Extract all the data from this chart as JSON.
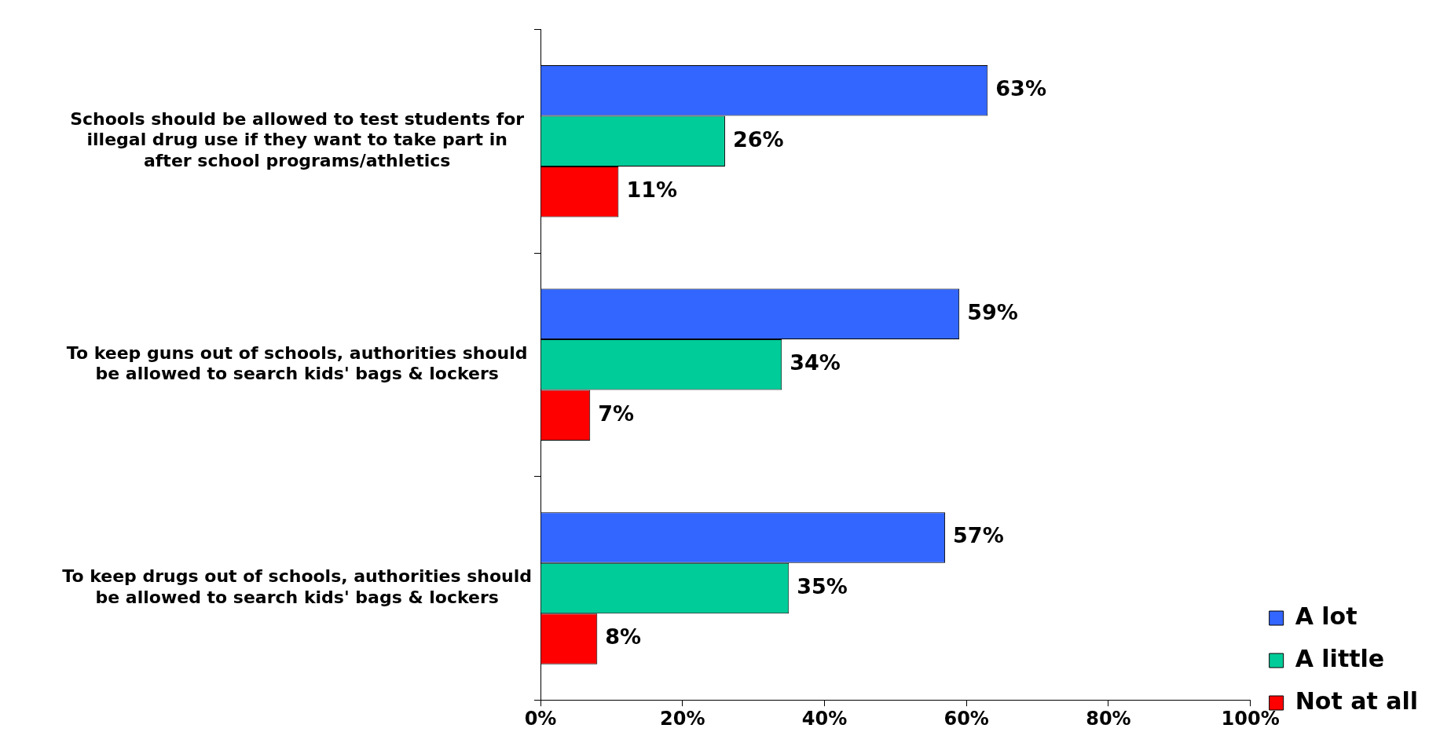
{
  "chart_data": {
    "type": "bar",
    "orientation": "horizontal",
    "categories": [
      "Schools should be allowed to test students for illegal drug use if they want to take part in after school programs/athletics",
      "To keep guns out of schools, authorities should be allowed to search kids' bags & lockers",
      "To keep drugs out of schools, authorities should be allowed to search kids' bags & lockers"
    ],
    "series": [
      {
        "name": "A lot",
        "color": "#3366ff",
        "values": [
          63,
          59,
          57
        ],
        "value_labels": [
          "63%",
          "59%",
          "57%"
        ]
      },
      {
        "name": "A little",
        "color": "#00cc99",
        "values": [
          26,
          34,
          35
        ],
        "value_labels": [
          "26%",
          "34%",
          "35%"
        ]
      },
      {
        "name": "Not at all",
        "color": "#ff0000",
        "values": [
          11,
          7,
          8
        ],
        "value_labels": [
          "11%",
          "7%",
          "8%"
        ]
      }
    ],
    "xlim": [
      0,
      100
    ],
    "xticks": [
      {
        "value": 0,
        "label": "0%"
      },
      {
        "value": 20,
        "label": "20%"
      },
      {
        "value": 40,
        "label": "40%"
      },
      {
        "value": 60,
        "label": "60%"
      },
      {
        "value": 80,
        "label": "80%"
      },
      {
        "value": 100,
        "label": "100%"
      }
    ],
    "grid": false,
    "legend": "bottom right"
  }
}
